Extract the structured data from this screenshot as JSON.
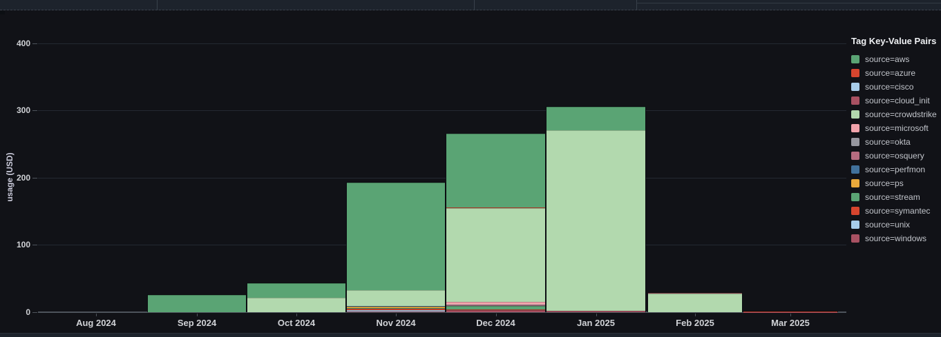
{
  "panel": {
    "y_axis_title": "usage (USD)",
    "legend_title": "Tag Key-Value Pairs"
  },
  "chart_data": {
    "type": "bar",
    "stacked": true,
    "title": "",
    "xlabel": "",
    "ylabel": "usage (USD)",
    "ylim": [
      0,
      400
    ],
    "yticks": [
      0,
      100,
      200,
      300,
      400
    ],
    "grid": "horizontal",
    "legend_position": "right",
    "legend_title": "Tag Key-Value Pairs",
    "categories": [
      "Aug 2024",
      "Sep 2024",
      "Oct 2024",
      "Nov 2024",
      "Dec 2024",
      "Jan 2025",
      "Feb 2025",
      "Mar 2025"
    ],
    "stack_order_bottom_to_top": [
      "windows",
      "unix",
      "symantec",
      "stream",
      "ps",
      "perfmon",
      "osquery",
      "okta",
      "microsoft",
      "crowdstrike",
      "cloud_init",
      "cisco",
      "azure",
      "aws"
    ],
    "series": [
      {
        "key": "aws",
        "name": "source=aws",
        "color": "#5aa474",
        "values": [
          0,
          27,
          21.5,
          161,
          110,
          35,
          0,
          0
        ]
      },
      {
        "key": "azure",
        "name": "source=azure",
        "color": "#d6452e",
        "values": [
          0,
          0,
          0,
          0,
          0.5,
          0,
          0,
          0
        ]
      },
      {
        "key": "cisco",
        "name": "source=cisco",
        "color": "#a7cce9",
        "values": [
          0,
          0,
          0,
          0,
          0,
          0,
          0,
          0
        ]
      },
      {
        "key": "cloud_init",
        "name": "source=cloud_init",
        "color": "#a85162",
        "values": [
          0,
          0,
          0,
          0,
          0,
          0,
          1,
          0
        ]
      },
      {
        "key": "crowdstrike",
        "name": "source=crowdstrike",
        "color": "#b2d9ae",
        "values": [
          0,
          0,
          22.5,
          24,
          140,
          270,
          29,
          0
        ]
      },
      {
        "key": "microsoft",
        "name": "source=microsoft",
        "color": "#f1a3ab",
        "values": [
          0,
          0,
          0,
          0.5,
          4.5,
          0,
          0,
          0
        ]
      },
      {
        "key": "okta",
        "name": "source=okta",
        "color": "#96969e",
        "values": [
          0,
          0,
          0,
          0,
          1,
          0,
          0,
          0
        ]
      },
      {
        "key": "osquery",
        "name": "source=osquery",
        "color": "#b66c80",
        "values": [
          0,
          0,
          0,
          0,
          1.5,
          0,
          0,
          0
        ]
      },
      {
        "key": "perfmon",
        "name": "source=perfmon",
        "color": "#41719b",
        "values": [
          0,
          0,
          0,
          1,
          0,
          0,
          0,
          0
        ]
      },
      {
        "key": "ps",
        "name": "source=ps",
        "color": "#e9a93b",
        "values": [
          0,
          0,
          0,
          2,
          0,
          0,
          0,
          0
        ]
      },
      {
        "key": "stream",
        "name": "source=stream",
        "color": "#5aa474",
        "values": [
          0,
          0,
          0,
          1,
          4.5,
          0,
          0,
          0
        ]
      },
      {
        "key": "symantec",
        "name": "source=symantec",
        "color": "#d6452e",
        "values": [
          0,
          0,
          0,
          2,
          1.5,
          0,
          0,
          1
        ]
      },
      {
        "key": "unix",
        "name": "source=unix",
        "color": "#a7cce9",
        "values": [
          0,
          0,
          0,
          1.5,
          0,
          0,
          0,
          0
        ]
      },
      {
        "key": "windows",
        "name": "source=windows",
        "color": "#a85162",
        "values": [
          0,
          0,
          0,
          1.5,
          3,
          2,
          0,
          1
        ]
      }
    ]
  }
}
